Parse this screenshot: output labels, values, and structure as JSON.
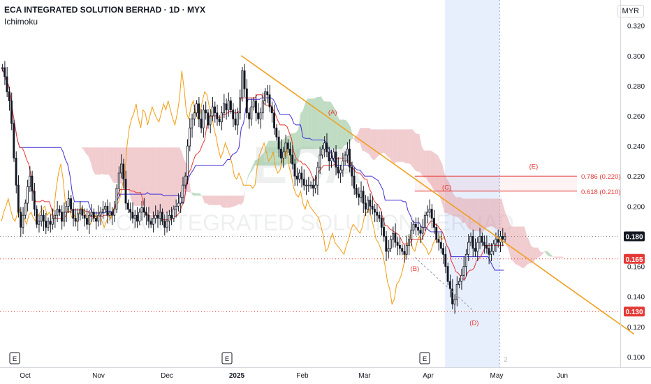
{
  "header": {
    "title": "ECA INTEGRATED SOLUTION BERHAD · 1D · MYX",
    "indicator": "Ichimoku",
    "currency": "MYR"
  },
  "watermark": {
    "ticker": "ECA",
    "name": "ECA INTEGRATED SOLUTION BERHAD"
  },
  "colors": {
    "candle": "#131722",
    "tenkan": "#e53935",
    "kijun": "#3f2fd6",
    "chikou": "#f39c12",
    "cloud_bear": "#e6a3a8",
    "cloud_bull": "#8bbf92",
    "trendline": "#f0a020",
    "fib": "#e53935",
    "highlight": "#e8effc"
  },
  "chart_data": {
    "type": "candlestick",
    "y_axis": {
      "ticks": [
        "0.320",
        "0.300",
        "0.280",
        "0.260",
        "0.240",
        "0.220",
        "0.200",
        "0.180",
        "0.160",
        "0.140",
        "0.120",
        "0.100"
      ],
      "tick_values": [
        0.32,
        0.3,
        0.28,
        0.26,
        0.24,
        0.22,
        0.2,
        0.18,
        0.16,
        0.14,
        0.12,
        0.1
      ],
      "range": [
        0.093,
        0.337
      ]
    },
    "x_axis": {
      "labels": [
        "Oct",
        "Nov",
        "Dec",
        "2025",
        "Feb",
        "Mar",
        "Apr",
        "May",
        "Jun"
      ]
    },
    "price_tags": [
      {
        "label": "0.180",
        "value": 0.18,
        "style": "dark"
      },
      {
        "label": "0.165",
        "value": 0.165,
        "style": "red"
      },
      {
        "label": "0.130",
        "value": 0.13,
        "style": "red"
      }
    ],
    "fib_levels": [
      {
        "label": "0.786 (0.220)",
        "value": 0.22
      },
      {
        "label": "0.618 (0.210)",
        "value": 0.21
      }
    ],
    "wave_labels": [
      {
        "label": "(A)",
        "x_index": 145,
        "value": 0.261
      },
      {
        "label": "(B)",
        "x_index": 181,
        "value": 0.157
      },
      {
        "label": "(C)",
        "x_index": 195,
        "value": 0.211
      },
      {
        "label": "(D)",
        "x_index": 207,
        "value": 0.121
      },
      {
        "label": "(E)",
        "x_index": 233,
        "value": 0.225
      }
    ],
    "event_markers": [
      "E",
      "E",
      "E"
    ],
    "future_marker": "2",
    "trendline": {
      "x1_index": 105,
      "y1": 0.3,
      "x2_index": 277,
      "y2": 0.115
    },
    "candles": {
      "x_start_index": 0,
      "close": [
        0.292,
        0.286,
        0.276,
        0.27,
        0.255,
        0.232,
        0.214,
        0.196,
        0.186,
        0.194,
        0.202,
        0.213,
        0.22,
        0.21,
        0.198,
        0.188,
        0.19,
        0.194,
        0.19,
        0.186,
        0.19,
        0.188,
        0.192,
        0.194,
        0.198,
        0.196,
        0.19,
        0.196,
        0.2,
        0.205,
        0.198,
        0.192,
        0.19,
        0.195,
        0.198,
        0.194,
        0.192,
        0.188,
        0.194,
        0.196,
        0.192,
        0.19,
        0.194,
        0.196,
        0.198,
        0.2,
        0.194,
        0.196,
        0.194,
        0.198,
        0.212,
        0.222,
        0.228,
        0.218,
        0.202,
        0.198,
        0.196,
        0.192,
        0.194,
        0.19,
        0.196,
        0.199,
        0.196,
        0.194,
        0.19,
        0.188,
        0.192,
        0.194,
        0.192,
        0.196,
        0.19,
        0.186,
        0.19,
        0.194,
        0.192,
        0.198,
        0.2,
        0.202,
        0.206,
        0.214,
        0.22,
        0.24,
        0.252,
        0.258,
        0.262,
        0.268,
        0.258,
        0.252,
        0.264,
        0.262,
        0.254,
        0.26,
        0.266,
        0.262,
        0.258,
        0.256,
        0.262,
        0.268,
        0.264,
        0.27,
        0.264,
        0.258,
        0.254,
        0.262,
        0.272,
        0.29,
        0.278,
        0.262,
        0.258,
        0.266,
        0.27,
        0.262,
        0.258,
        0.262,
        0.27,
        0.276,
        0.274,
        0.266,
        0.262,
        0.252,
        0.246,
        0.238,
        0.232,
        0.236,
        0.242,
        0.238,
        0.234,
        0.228,
        0.22,
        0.218,
        0.222,
        0.218,
        0.214,
        0.214,
        0.214,
        0.214,
        0.212,
        0.214,
        0.226,
        0.234,
        0.238,
        0.242,
        0.236,
        0.23,
        0.232,
        0.236,
        0.226,
        0.222,
        0.224,
        0.23,
        0.234,
        0.238,
        0.226,
        0.22,
        0.212,
        0.208,
        0.206,
        0.21,
        0.202,
        0.198,
        0.204,
        0.2,
        0.198,
        0.196,
        0.194,
        0.192,
        0.186,
        0.18,
        0.17,
        0.172,
        0.178,
        0.182,
        0.176,
        0.174,
        0.172,
        0.17,
        0.168,
        0.174,
        0.178,
        0.184,
        0.188,
        0.186,
        0.184,
        0.182,
        0.186,
        0.194,
        0.196,
        0.198,
        0.192,
        0.186,
        0.178,
        0.176,
        0.172,
        0.168,
        0.16,
        0.15,
        0.145,
        0.135,
        0.138,
        0.148,
        0.15,
        0.154,
        0.16,
        0.168,
        0.176,
        0.18,
        0.172,
        0.17,
        0.176,
        0.18,
        0.176,
        0.174,
        0.172,
        0.168,
        0.17,
        0.175,
        0.178,
        0.176,
        0.18,
        0.178,
        0.18
      ]
    },
    "series": [
      {
        "name": "Tenkan",
        "kind": "line"
      },
      {
        "name": "Kijun",
        "kind": "line"
      },
      {
        "name": "Chikou",
        "kind": "line"
      },
      {
        "name": "Kumo",
        "kind": "cloud"
      }
    ]
  }
}
